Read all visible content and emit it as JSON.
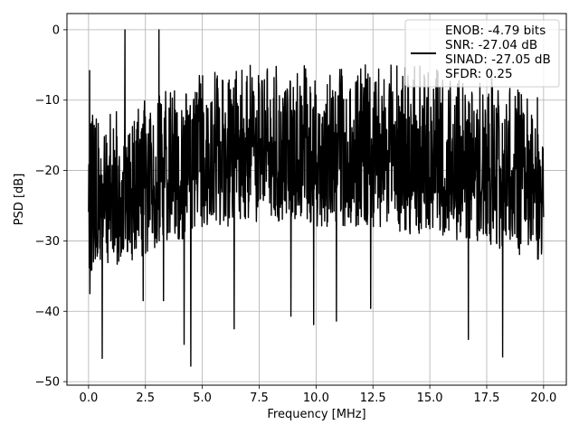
{
  "chart_data": {
    "type": "line",
    "title": "",
    "xlabel": "Frequency [MHz]",
    "ylabel": "PSD [dB]",
    "xlim": [
      -0.95,
      21.0
    ],
    "ylim": [
      -50.5,
      2.3
    ],
    "xticks": [
      0.0,
      2.5,
      5.0,
      7.5,
      10.0,
      12.5,
      15.0,
      17.5,
      20.0
    ],
    "xtick_labels": [
      "0.0",
      "2.5",
      "5.0",
      "7.5",
      "10.0",
      "12.5",
      "15.0",
      "17.5",
      "20.0"
    ],
    "yticks": [
      0,
      -10,
      -20,
      -30,
      -40,
      -50
    ],
    "ytick_labels": [
      "0",
      "−10",
      "−20",
      "−30",
      "−40",
      "−50"
    ],
    "grid": true,
    "legend": {
      "placement": "top-right",
      "entries": [
        "ENOB: -4.79 bits",
        "SNR: -27.04 dB",
        "SINAD: -27.05 dB",
        "SFDR: 0.25"
      ]
    },
    "series": [
      {
        "color": "#000000",
        "x_start": 0.0,
        "x_end": 20.0,
        "envelope": {
          "x": [
            0,
            0.5,
            1,
            1.5,
            2,
            2.5,
            3,
            3.5,
            4,
            4.5,
            5,
            6,
            7,
            8,
            9,
            10,
            11,
            12,
            13,
            14,
            15,
            16,
            17,
            18,
            19,
            20
          ],
          "upper": [
            -10,
            -12,
            -12,
            -11,
            -11,
            -10,
            -9,
            -8,
            -8,
            -7,
            -6,
            -6,
            -5,
            -5,
            -5,
            -5,
            -5,
            -5,
            -5,
            -5,
            -5,
            -6,
            -6,
            -7,
            -8,
            -9
          ],
          "lower": [
            -34,
            -35,
            -34,
            -33,
            -33,
            -32,
            -31,
            -30,
            -30,
            -29,
            -28,
            -28,
            -28,
            -28,
            -28,
            -28,
            -28,
            -28,
            -28,
            -29,
            -29,
            -30,
            -30,
            -31,
            -32,
            -33
          ]
        },
        "spikes": [
          {
            "x": 0.05,
            "y": -5.8
          },
          {
            "x": 0.06,
            "y": -37.5
          },
          {
            "x": 0.6,
            "y": -46.7
          },
          {
            "x": 1.6,
            "y": 0.0
          },
          {
            "x": 2.4,
            "y": -38.5
          },
          {
            "x": 3.1,
            "y": 0.0
          },
          {
            "x": 3.3,
            "y": -38.5
          },
          {
            "x": 4.2,
            "y": -44.7
          },
          {
            "x": 4.5,
            "y": -47.8
          },
          {
            "x": 6.4,
            "y": -42.5
          },
          {
            "x": 8.9,
            "y": -40.7
          },
          {
            "x": 9.9,
            "y": -41.9
          },
          {
            "x": 10.9,
            "y": -41.4
          },
          {
            "x": 12.4,
            "y": -39.6
          },
          {
            "x": 16.7,
            "y": -44.0
          },
          {
            "x": 18.2,
            "y": -46.5
          }
        ]
      }
    ]
  }
}
